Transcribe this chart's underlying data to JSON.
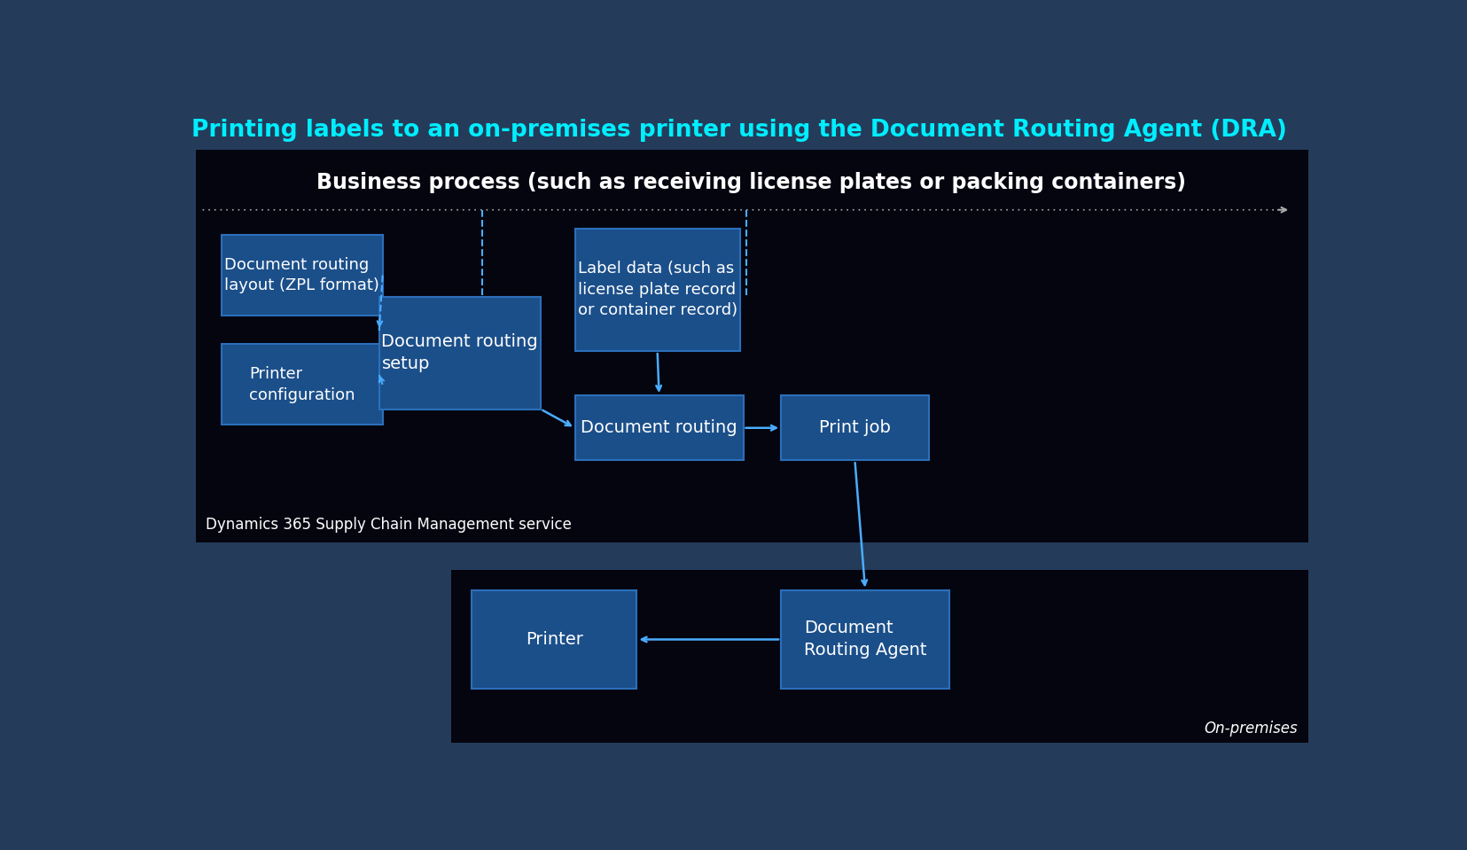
{
  "title": "Printing labels to an on-premises printer using the Document Routing Agent (DRA)",
  "title_color": "#00EEFF",
  "bg_color": "#243C5A",
  "dark_bg": "#050510",
  "box_color": "#1B4F8A",
  "box_edge_color": "#2B6FBA",
  "text_color": "#FFFFFF",
  "arrow_color": "#4AADFF",
  "dashed_color": "#4AADFF",
  "dotted_color": "#AAAAAA",
  "business_title": "Business process (such as receiving license plates or packing containers)",
  "service_label": "Dynamics 365 Supply Chain Management service",
  "on_premises_label": "On-premises",
  "doc_routing_layout": "Document routing\nlayout (ZPL format)",
  "printer_config": "Printer\nconfiguration",
  "doc_routing_setup": "Document routing\nsetup",
  "label_data": "Label data (such as\nlicense plate record\nor container record)",
  "doc_routing": "Document routing",
  "print_job": "Print job",
  "printer": "Printer",
  "doc_routing_agent": "Document\nRouting Agent"
}
